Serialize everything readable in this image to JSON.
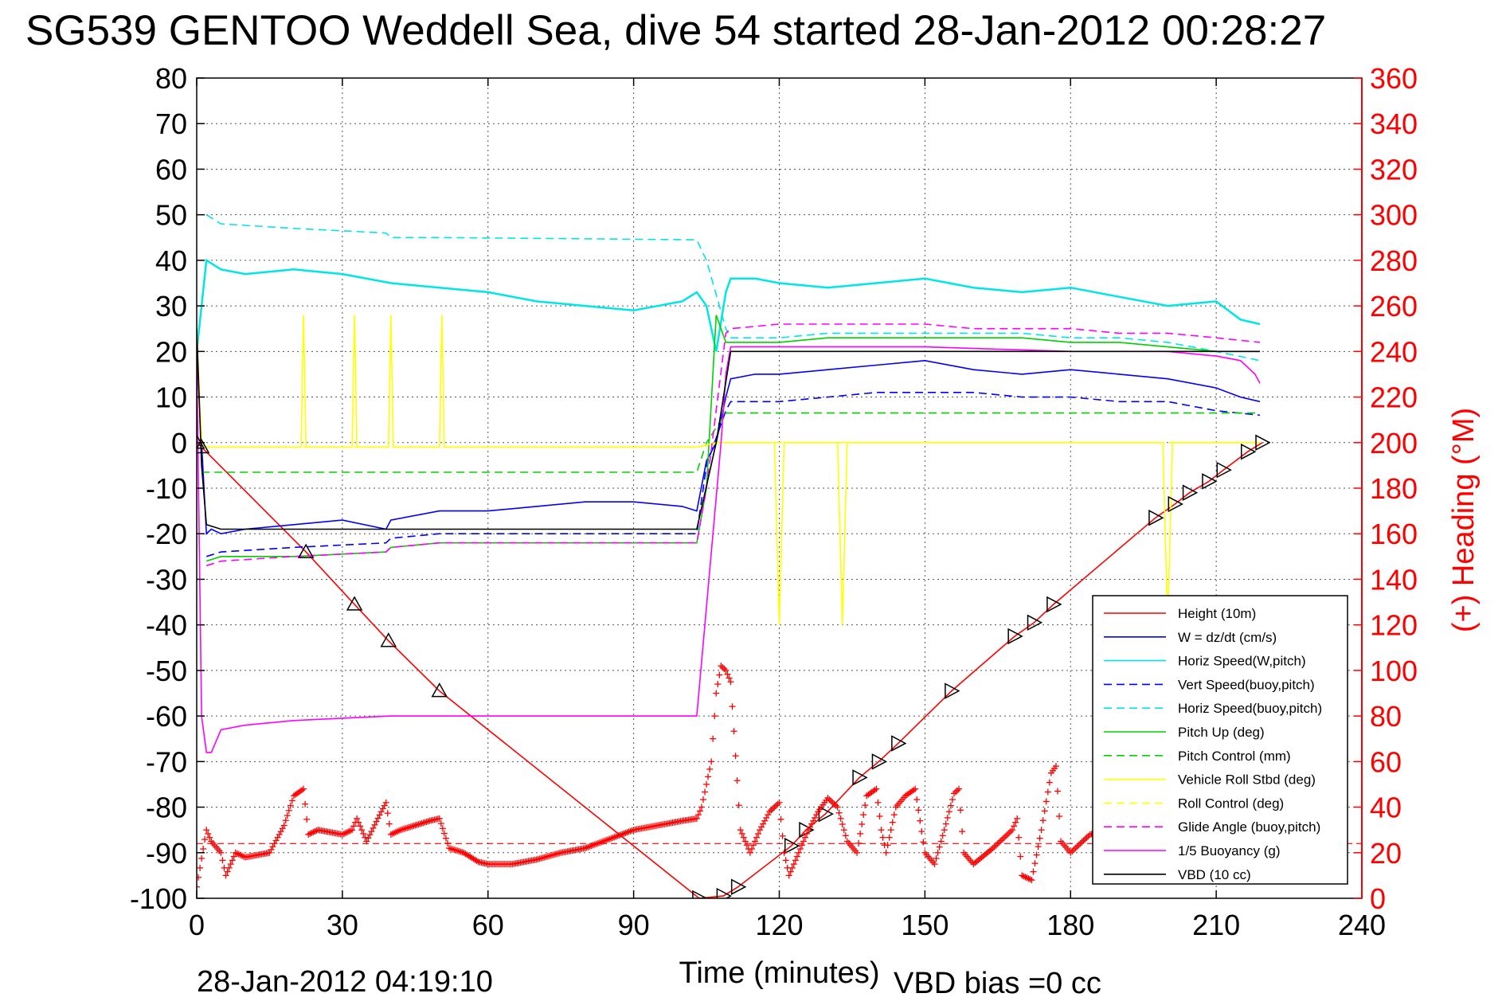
{
  "header": {
    "title": "SG539 GENTOO Weddell Sea, dive 54 started 28-Jan-2012 00:28:27"
  },
  "footer": {
    "timestamp": "28-Jan-2012 04:19:10",
    "vbd_bias": "VBD bias =0 cc"
  },
  "chart_data": {
    "type": "line",
    "title": "SG539 GENTOO Weddell Sea, dive 54 started 28-Jan-2012 00:28:27",
    "xlabel": "Time (minutes)",
    "ylabel": "",
    "y2label": "(+) Heading (°M)",
    "xlim": [
      0,
      240
    ],
    "ylim": [
      -100,
      80
    ],
    "y2lim": [
      0,
      360
    ],
    "xticks": [
      "0",
      "30",
      "60",
      "90",
      "120",
      "150",
      "180",
      "210",
      "240"
    ],
    "yticks": [
      "80",
      "70",
      "60",
      "50",
      "40",
      "30",
      "20",
      "10",
      "0",
      "-10",
      "-20",
      "-30",
      "-40",
      "-50",
      "-60",
      "-70",
      "-80",
      "-90",
      "-100"
    ],
    "y2ticks": [
      "360",
      "340",
      "320",
      "300",
      "280",
      "260",
      "240",
      "220",
      "200",
      "180",
      "160",
      "140",
      "120",
      "100",
      "80",
      "60",
      "40",
      "20",
      "0"
    ],
    "grid": true,
    "legend_position": "bottom-right",
    "colors": {
      "right_axis": "#ff0000"
    },
    "series": [
      {
        "name": "Height (10m)",
        "color": "#ff0000",
        "style": "solid",
        "x": [
          0,
          1,
          22.5,
          32.5,
          39.5,
          50,
          103.5,
          108.5,
          111.5,
          122.5,
          125.5,
          129.5,
          136.5,
          140.5,
          144.5,
          155.5,
          168.5,
          172.5,
          176.5,
          197.5,
          201.5,
          204.5,
          208.5,
          211.5,
          216.5,
          219.5
        ],
        "y": [
          0,
          -1,
          -24,
          -35.5,
          -43.5,
          -54.5,
          -100,
          -99.5,
          -97.5,
          -88.5,
          -85,
          -81.5,
          -73.5,
          -70,
          -66,
          -54.5,
          -42.5,
          -39.5,
          -35.5,
          -16.5,
          -13.5,
          -11,
          -8.5,
          -6,
          -2,
          0
        ]
      },
      {
        "name": "W = dz/dt (cm/s)",
        "color": "#0000ff",
        "style": "solid",
        "x": [
          0,
          1,
          2,
          3,
          5,
          10,
          20,
          30,
          39,
          40,
          50,
          60,
          70,
          80,
          90,
          100,
          103,
          105,
          107,
          109,
          110,
          115,
          120,
          130,
          140,
          150,
          160,
          170,
          180,
          190,
          200,
          210,
          215,
          219
        ],
        "y": [
          20,
          0,
          -20,
          -19,
          -20,
          -19,
          -18,
          -17,
          -19,
          -17,
          -15,
          -15,
          -14,
          -13,
          -13,
          -14,
          -15,
          -4,
          0,
          10,
          14,
          15,
          15,
          16,
          17,
          18,
          16,
          15,
          16,
          15,
          14,
          12,
          10,
          9
        ]
      },
      {
        "name": "Horiz Speed(W,pitch)",
        "color": "#00e5e5",
        "style": "solid",
        "x": [
          0,
          2,
          5,
          10,
          20,
          30,
          40,
          50,
          60,
          70,
          80,
          90,
          100,
          103,
          105,
          107,
          109,
          110,
          115,
          120,
          130,
          140,
          150,
          160,
          170,
          180,
          190,
          200,
          210,
          215,
          219
        ],
        "y": [
          20,
          40,
          38,
          37,
          38,
          37,
          35,
          34,
          33,
          31,
          30,
          29,
          31,
          33,
          30,
          20,
          33,
          36,
          36,
          35,
          34,
          35,
          36,
          34,
          33,
          34,
          32,
          30,
          31,
          27,
          26
        ]
      },
      {
        "name": "Vert Speed(buoy,pitch)",
        "color": "#0000ff",
        "style": "dashed",
        "x": [
          2,
          5,
          20,
          39,
          40,
          50,
          103,
          105,
          109,
          110,
          120,
          130,
          140,
          150,
          160,
          170,
          180,
          190,
          200,
          210,
          219
        ],
        "y": [
          -25,
          -24,
          -23,
          -22,
          -21,
          -20,
          -20,
          -5,
          7,
          9,
          9,
          10,
          11,
          11,
          11,
          10,
          10,
          9,
          9,
          7,
          6
        ]
      },
      {
        "name": "Horiz Speed(buoy,pitch)",
        "color": "#00e5e5",
        "style": "dashed",
        "x": [
          2,
          5,
          20,
          39,
          40,
          50,
          103,
          105,
          109,
          110,
          120,
          130,
          140,
          150,
          160,
          170,
          180,
          190,
          200,
          210,
          219
        ],
        "y": [
          50,
          48,
          47,
          46,
          45,
          45,
          44.5,
          40,
          25,
          23,
          23,
          24,
          24,
          24,
          24,
          24,
          23,
          23,
          22,
          20,
          18
        ]
      },
      {
        "name": "Pitch Up (deg)",
        "color": "#00d000",
        "style": "solid",
        "x": [
          2,
          5,
          20,
          39,
          40,
          50,
          103,
          105,
          107,
          109,
          110,
          120,
          130,
          140,
          150,
          160,
          170,
          180,
          190,
          200,
          210,
          219
        ],
        "y": [
          -26,
          -25,
          -25,
          -24,
          -23,
          -22,
          -22,
          -10,
          28,
          22,
          22,
          22,
          23,
          23,
          23,
          23,
          23,
          22,
          22,
          21,
          20,
          20
        ]
      },
      {
        "name": "Pitch Control (mm)",
        "color": "#00d000",
        "style": "dashed",
        "x": [
          1,
          5,
          103,
          105,
          109,
          110,
          210,
          219
        ],
        "y": [
          -6.5,
          -6.5,
          -6.5,
          0,
          6.5,
          6.5,
          6.5,
          6.5
        ]
      },
      {
        "name": "Vehicle Roll Stbd (deg)",
        "color": "#ffff00",
        "style": "solid",
        "x": [
          0,
          1,
          2,
          21.5,
          22,
          22.5,
          32,
          32.5,
          33,
          39.5,
          40,
          40.5,
          50,
          50.5,
          51,
          103,
          107,
          108,
          119,
          120,
          121,
          132,
          133,
          134,
          199,
          200,
          201,
          219
        ],
        "y": [
          25,
          0,
          -1,
          -1,
          28,
          -1,
          -1,
          28,
          -1,
          -1,
          28,
          -1,
          -1,
          28,
          -1,
          -1,
          0,
          0,
          0,
          -40,
          0,
          0,
          -40,
          0,
          0,
          -40,
          0,
          0
        ]
      },
      {
        "name": "Roll Control (deg)",
        "color": "#ffff00",
        "style": "dashed",
        "x": [
          1,
          103,
          108,
          219
        ],
        "y": [
          -1,
          -1,
          0,
          0
        ]
      },
      {
        "name": "Glide Angle (buoy,pitch)",
        "color": "#ff00ff",
        "style": "dashed",
        "x": [
          2,
          5,
          20,
          39,
          40,
          50,
          103,
          105,
          109,
          110,
          120,
          130,
          140,
          150,
          160,
          170,
          180,
          190,
          200,
          210,
          219
        ],
        "y": [
          -27,
          -26,
          -25,
          -24,
          -23,
          -22,
          -22,
          -10,
          24,
          25,
          26,
          26,
          26,
          26,
          25,
          25,
          25,
          24,
          24,
          23,
          22
        ]
      },
      {
        "name": "1/5 Buoyancy (g)",
        "color": "#ff00ff",
        "style": "solid",
        "x": [
          0,
          1,
          2,
          3,
          5,
          10,
          20,
          40,
          60,
          80,
          103,
          108,
          109,
          110,
          120,
          150,
          180,
          200,
          210,
          215,
          218,
          219
        ],
        "y": [
          20,
          -60,
          -68,
          -68,
          -63,
          -62,
          -61,
          -60,
          -60,
          -60,
          -60,
          0,
          15,
          21,
          21,
          21,
          20,
          20,
          19,
          18,
          15,
          13
        ]
      },
      {
        "name": "VBD (10 cc)",
        "color": "#000000",
        "style": "solid",
        "x": [
          0,
          1,
          2,
          5,
          50,
          103,
          107,
          110,
          200,
          219
        ],
        "y": [
          25,
          -5,
          -18,
          -19,
          -19,
          -19,
          0,
          20,
          20,
          20
        ]
      }
    ],
    "heading_series": {
      "name": "Heading",
      "axis": "right",
      "color": "#ff0000",
      "marker": "+",
      "x": [
        0,
        2,
        3,
        5,
        6,
        8,
        10,
        15,
        18,
        20,
        22,
        23,
        25,
        30,
        32,
        33,
        35,
        38,
        39,
        40,
        42,
        45,
        48,
        50,
        52,
        55,
        58,
        60,
        65,
        70,
        75,
        80,
        85,
        90,
        95,
        100,
        103,
        104,
        106,
        107,
        108,
        109,
        110,
        112,
        114,
        116,
        118,
        120,
        121,
        122,
        124,
        126,
        128,
        130,
        132,
        134,
        136,
        138,
        140,
        141,
        142,
        144,
        146,
        148,
        150,
        152,
        154,
        156,
        157,
        158,
        160,
        164,
        168,
        169,
        170,
        172,
        174,
        176,
        177,
        178,
        180,
        184,
        188,
        190,
        192,
        196,
        200,
        205,
        210,
        215,
        219
      ],
      "y": [
        5,
        30,
        25,
        20,
        10,
        20,
        18,
        20,
        32,
        45,
        48,
        28,
        30,
        28,
        30,
        35,
        25,
        38,
        42,
        28,
        30,
        32,
        34,
        35,
        22,
        20,
        16,
        15,
        15,
        17,
        20,
        22,
        26,
        30,
        32,
        34,
        35,
        40,
        60,
        90,
        102,
        100,
        95,
        30,
        20,
        30,
        38,
        42,
        20,
        10,
        20,
        30,
        38,
        44,
        40,
        25,
        20,
        45,
        48,
        30,
        20,
        40,
        45,
        48,
        20,
        15,
        30,
        46,
        48,
        20,
        15,
        22,
        30,
        35,
        10,
        8,
        30,
        55,
        58,
        25,
        20,
        28,
        30,
        35,
        40,
        45,
        40,
        38,
        42,
        45,
        48
      ]
    }
  }
}
